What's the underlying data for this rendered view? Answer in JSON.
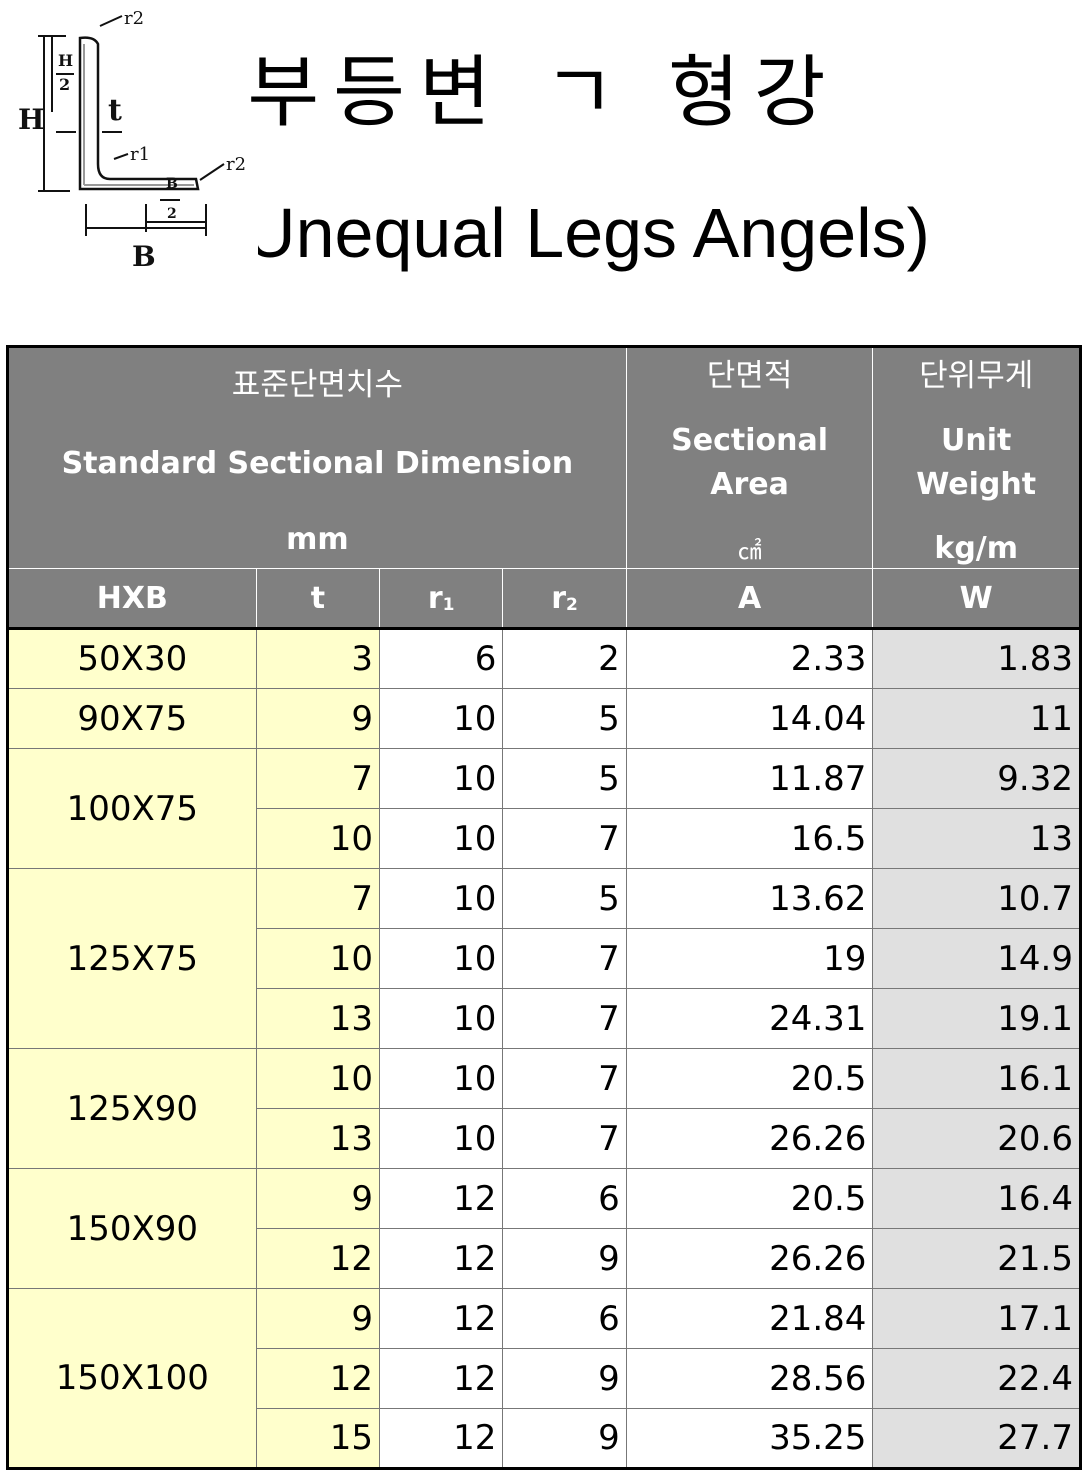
{
  "title_korean": "부등변 ㄱ 형강",
  "title_english": "(Unequal Legs Angels)",
  "diagram": {
    "labels": {
      "r2_top": "r2",
      "r2_right": "r2",
      "r1": "r1",
      "t": "t",
      "H": "H",
      "H_half_num": "H",
      "H_half_den": "2",
      "B": "B",
      "B_half_num": "B",
      "B_half_den": "2"
    }
  },
  "table": {
    "headers": {
      "dimension": {
        "korean": "표준단면치수",
        "english": "Standard Sectional Dimension",
        "unit": "mm"
      },
      "area": {
        "korean": "단면적",
        "english": "Sectional Area",
        "unit": "㎠"
      },
      "weight": {
        "korean": "단위무게",
        "english": "Unit Weight",
        "unit": "kg/m"
      }
    },
    "subheaders": {
      "size": "HXB",
      "t": "t",
      "r1": "r",
      "r1_sub": "1",
      "r2": "r",
      "r2_sub": "2",
      "area": "A",
      "weight": "W"
    },
    "groups": [
      {
        "size": "50X30",
        "rows": [
          {
            "t": "3",
            "r1": "6",
            "r2": "2",
            "A": "2.33",
            "W": "1.83"
          }
        ]
      },
      {
        "size": "90X75",
        "rows": [
          {
            "t": "9",
            "r1": "10",
            "r2": "5",
            "A": "14.04",
            "W": "11"
          }
        ]
      },
      {
        "size": "100X75",
        "rows": [
          {
            "t": "7",
            "r1": "10",
            "r2": "5",
            "A": "11.87",
            "W": "9.32"
          },
          {
            "t": "10",
            "r1": "10",
            "r2": "7",
            "A": "16.5",
            "W": "13"
          }
        ]
      },
      {
        "size": "125X75",
        "rows": [
          {
            "t": "7",
            "r1": "10",
            "r2": "5",
            "A": "13.62",
            "W": "10.7"
          },
          {
            "t": "10",
            "r1": "10",
            "r2": "7",
            "A": "19",
            "W": "14.9"
          },
          {
            "t": "13",
            "r1": "10",
            "r2": "7",
            "A": "24.31",
            "W": "19.1"
          }
        ]
      },
      {
        "size": "125X90",
        "rows": [
          {
            "t": "10",
            "r1": "10",
            "r2": "7",
            "A": "20.5",
            "W": "16.1"
          },
          {
            "t": "13",
            "r1": "10",
            "r2": "7",
            "A": "26.26",
            "W": "20.6"
          }
        ]
      },
      {
        "size": "150X90",
        "rows": [
          {
            "t": "9",
            "r1": "12",
            "r2": "6",
            "A": "20.5",
            "W": "16.4"
          },
          {
            "t": "12",
            "r1": "12",
            "r2": "9",
            "A": "26.26",
            "W": "21.5"
          }
        ]
      },
      {
        "size": "150X100",
        "rows": [
          {
            "t": "9",
            "r1": "12",
            "r2": "6",
            "A": "21.84",
            "W": "17.1"
          },
          {
            "t": "12",
            "r1": "12",
            "r2": "9",
            "A": "28.56",
            "W": "22.4"
          },
          {
            "t": "15",
            "r1": "12",
            "r2": "9",
            "A": "35.25",
            "W": "27.7"
          }
        ]
      }
    ]
  },
  "colors": {
    "header_bg": "#808080",
    "size_bg": "#ffffcc",
    "weight_bg": "#e0e0e0"
  }
}
